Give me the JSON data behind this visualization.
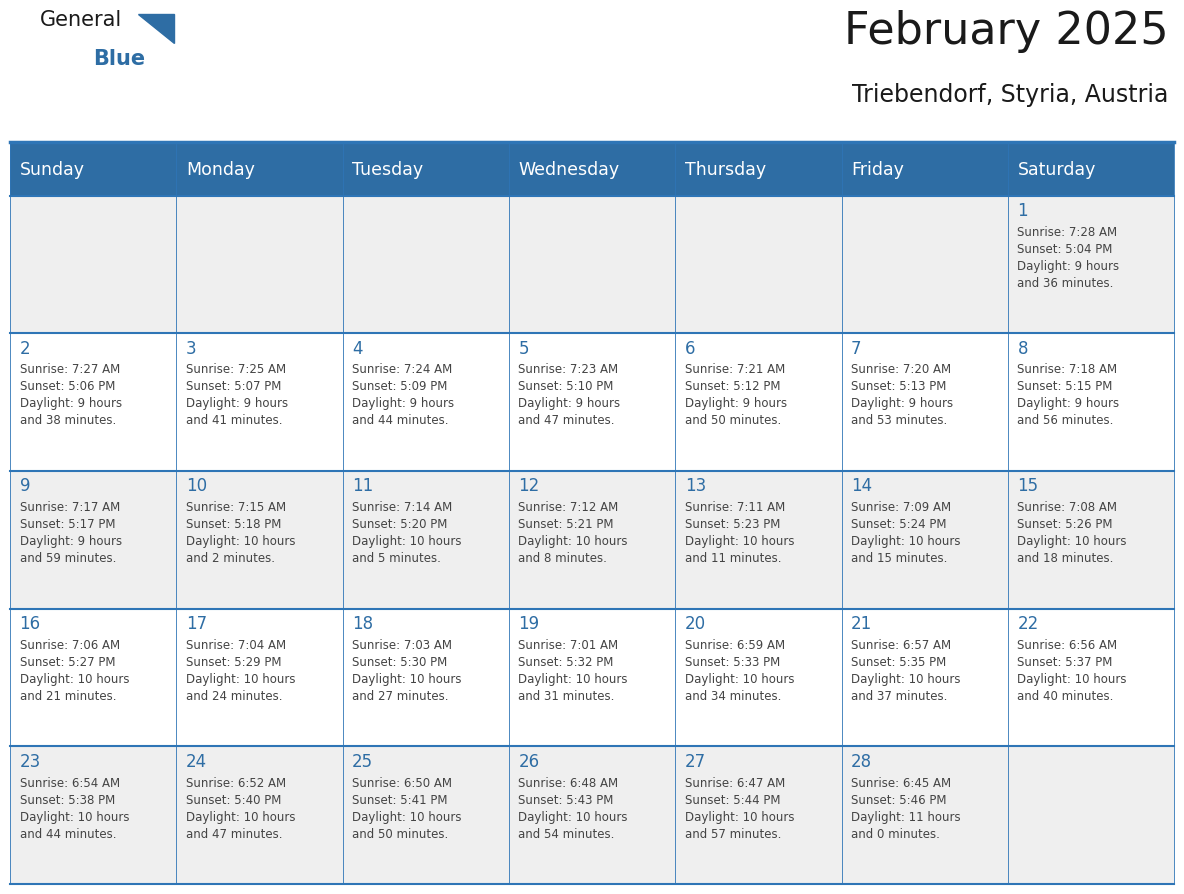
{
  "title": "February 2025",
  "subtitle": "Triebendorf, Styria, Austria",
  "header_bg": "#2E6DA4",
  "header_text_color": "#FFFFFF",
  "cell_bg_odd": "#EFEFEF",
  "cell_bg_even": "#FFFFFF",
  "day_number_color": "#2E6DA4",
  "text_color": "#444444",
  "border_color": "#2E75B6",
  "logo_general_color": "#1a1a1a",
  "logo_blue_color": "#2E6DA4",
  "title_color": "#1a1a1a",
  "days_of_week": [
    "Sunday",
    "Monday",
    "Tuesday",
    "Wednesday",
    "Thursday",
    "Friday",
    "Saturday"
  ],
  "weeks": [
    [
      {
        "day": null,
        "sunrise": null,
        "sunset": null,
        "daylight": ""
      },
      {
        "day": null,
        "sunrise": null,
        "sunset": null,
        "daylight": ""
      },
      {
        "day": null,
        "sunrise": null,
        "sunset": null,
        "daylight": ""
      },
      {
        "day": null,
        "sunrise": null,
        "sunset": null,
        "daylight": ""
      },
      {
        "day": null,
        "sunrise": null,
        "sunset": null,
        "daylight": ""
      },
      {
        "day": null,
        "sunrise": null,
        "sunset": null,
        "daylight": ""
      },
      {
        "day": 1,
        "sunrise": "7:28 AM",
        "sunset": "5:04 PM",
        "daylight": "9 hours\nand 36 minutes."
      }
    ],
    [
      {
        "day": 2,
        "sunrise": "7:27 AM",
        "sunset": "5:06 PM",
        "daylight": "9 hours\nand 38 minutes."
      },
      {
        "day": 3,
        "sunrise": "7:25 AM",
        "sunset": "5:07 PM",
        "daylight": "9 hours\nand 41 minutes."
      },
      {
        "day": 4,
        "sunrise": "7:24 AM",
        "sunset": "5:09 PM",
        "daylight": "9 hours\nand 44 minutes."
      },
      {
        "day": 5,
        "sunrise": "7:23 AM",
        "sunset": "5:10 PM",
        "daylight": "9 hours\nand 47 minutes."
      },
      {
        "day": 6,
        "sunrise": "7:21 AM",
        "sunset": "5:12 PM",
        "daylight": "9 hours\nand 50 minutes."
      },
      {
        "day": 7,
        "sunrise": "7:20 AM",
        "sunset": "5:13 PM",
        "daylight": "9 hours\nand 53 minutes."
      },
      {
        "day": 8,
        "sunrise": "7:18 AM",
        "sunset": "5:15 PM",
        "daylight": "9 hours\nand 56 minutes."
      }
    ],
    [
      {
        "day": 9,
        "sunrise": "7:17 AM",
        "sunset": "5:17 PM",
        "daylight": "9 hours\nand 59 minutes."
      },
      {
        "day": 10,
        "sunrise": "7:15 AM",
        "sunset": "5:18 PM",
        "daylight": "10 hours\nand 2 minutes."
      },
      {
        "day": 11,
        "sunrise": "7:14 AM",
        "sunset": "5:20 PM",
        "daylight": "10 hours\nand 5 minutes."
      },
      {
        "day": 12,
        "sunrise": "7:12 AM",
        "sunset": "5:21 PM",
        "daylight": "10 hours\nand 8 minutes."
      },
      {
        "day": 13,
        "sunrise": "7:11 AM",
        "sunset": "5:23 PM",
        "daylight": "10 hours\nand 11 minutes."
      },
      {
        "day": 14,
        "sunrise": "7:09 AM",
        "sunset": "5:24 PM",
        "daylight": "10 hours\nand 15 minutes."
      },
      {
        "day": 15,
        "sunrise": "7:08 AM",
        "sunset": "5:26 PM",
        "daylight": "10 hours\nand 18 minutes."
      }
    ],
    [
      {
        "day": 16,
        "sunrise": "7:06 AM",
        "sunset": "5:27 PM",
        "daylight": "10 hours\nand 21 minutes."
      },
      {
        "day": 17,
        "sunrise": "7:04 AM",
        "sunset": "5:29 PM",
        "daylight": "10 hours\nand 24 minutes."
      },
      {
        "day": 18,
        "sunrise": "7:03 AM",
        "sunset": "5:30 PM",
        "daylight": "10 hours\nand 27 minutes."
      },
      {
        "day": 19,
        "sunrise": "7:01 AM",
        "sunset": "5:32 PM",
        "daylight": "10 hours\nand 31 minutes."
      },
      {
        "day": 20,
        "sunrise": "6:59 AM",
        "sunset": "5:33 PM",
        "daylight": "10 hours\nand 34 minutes."
      },
      {
        "day": 21,
        "sunrise": "6:57 AM",
        "sunset": "5:35 PM",
        "daylight": "10 hours\nand 37 minutes."
      },
      {
        "day": 22,
        "sunrise": "6:56 AM",
        "sunset": "5:37 PM",
        "daylight": "10 hours\nand 40 minutes."
      }
    ],
    [
      {
        "day": 23,
        "sunrise": "6:54 AM",
        "sunset": "5:38 PM",
        "daylight": "10 hours\nand 44 minutes."
      },
      {
        "day": 24,
        "sunrise": "6:52 AM",
        "sunset": "5:40 PM",
        "daylight": "10 hours\nand 47 minutes."
      },
      {
        "day": 25,
        "sunrise": "6:50 AM",
        "sunset": "5:41 PM",
        "daylight": "10 hours\nand 50 minutes."
      },
      {
        "day": 26,
        "sunrise": "6:48 AM",
        "sunset": "5:43 PM",
        "daylight": "10 hours\nand 54 minutes."
      },
      {
        "day": 27,
        "sunrise": "6:47 AM",
        "sunset": "5:44 PM",
        "daylight": "10 hours\nand 57 minutes."
      },
      {
        "day": 28,
        "sunrise": "6:45 AM",
        "sunset": "5:46 PM",
        "daylight": "11 hours\nand 0 minutes."
      },
      {
        "day": null,
        "sunrise": null,
        "sunset": null,
        "daylight": ""
      }
    ]
  ]
}
